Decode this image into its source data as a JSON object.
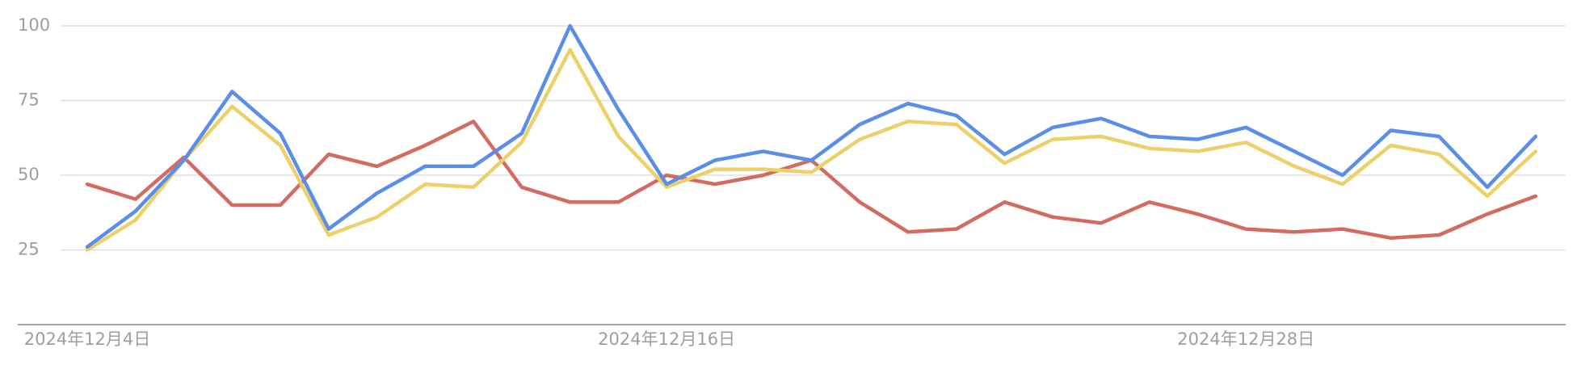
{
  "chart_data": {
    "type": "line",
    "categories": [
      "2024年12月4日",
      null,
      null,
      null,
      null,
      null,
      null,
      null,
      null,
      null,
      null,
      null,
      "2024年12月16日",
      null,
      null,
      null,
      null,
      null,
      null,
      null,
      null,
      null,
      null,
      null,
      "2024年12月28日",
      null,
      null,
      null,
      null,
      null,
      null
    ],
    "series": [
      {
        "color": "#d26b60",
        "values": [
          47,
          42,
          56,
          40,
          40,
          57,
          53,
          60,
          68,
          46,
          41,
          41,
          50,
          47,
          50,
          55,
          41,
          31,
          32,
          41,
          36,
          34,
          41,
          37,
          32,
          31,
          32,
          29,
          30,
          37,
          43
        ]
      },
      {
        "color": "#ecd16b",
        "values": [
          25,
          35,
          55,
          73,
          60,
          30,
          36,
          47,
          46,
          61,
          92,
          63,
          46,
          52,
          52,
          51,
          62,
          68,
          67,
          54,
          62,
          63,
          59,
          58,
          61,
          53,
          47,
          60,
          57,
          43,
          58
        ]
      },
      {
        "color": "#5b8ee6",
        "values": [
          26,
          38,
          55,
          78,
          64,
          32,
          44,
          53,
          53,
          64,
          100,
          72,
          47,
          55,
          58,
          55,
          67,
          74,
          70,
          57,
          66,
          69,
          63,
          62,
          66,
          58,
          50,
          65,
          63,
          46,
          63
        ]
      }
    ],
    "ylim": [
      0,
      100
    ],
    "yticks": [
      25,
      50,
      75,
      100
    ],
    "grid": true
  }
}
